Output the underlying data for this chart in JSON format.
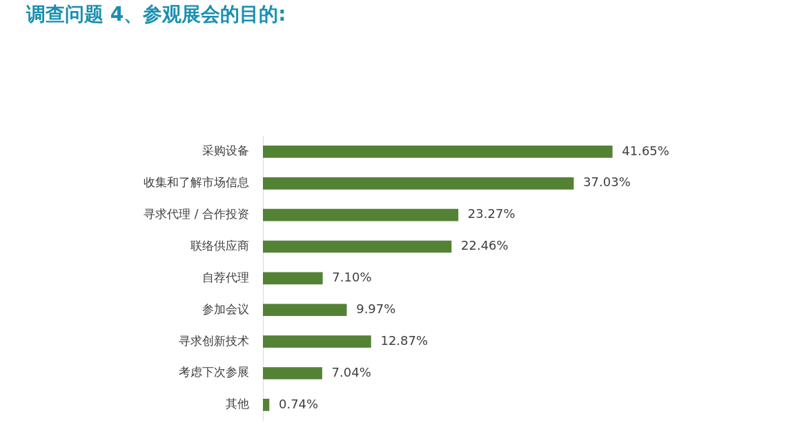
{
  "chart_data": {
    "type": "bar",
    "orientation": "horizontal",
    "title": "调查问题 4、参观展会的目的:",
    "categories": [
      "采购设备",
      "收集和了解市场信息",
      "寻求代理 / 合作投资",
      "联络供应商",
      "自荐代理",
      "参加会议",
      "寻求创新技术",
      "考虑下次参展",
      "其他"
    ],
    "values": [
      41.65,
      37.03,
      23.27,
      22.46,
      7.1,
      9.97,
      12.87,
      7.04,
      0.74
    ],
    "value_labels": [
      "41.65%",
      "37.03%",
      "23.27%",
      "22.46%",
      "7.10%",
      "9.97%",
      "12.87%",
      "7.04%",
      "0.74%"
    ],
    "color": "#548235"
  }
}
